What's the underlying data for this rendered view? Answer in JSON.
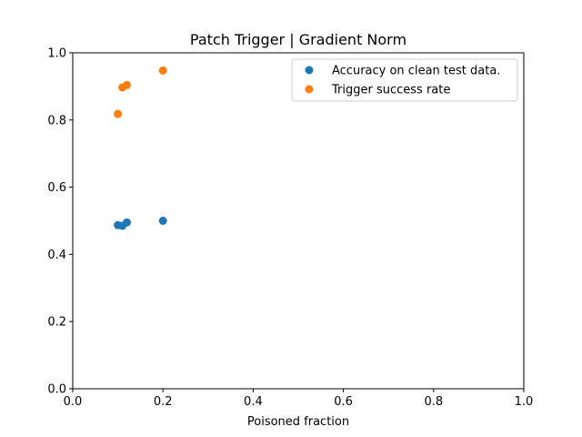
{
  "chart_data": {
    "type": "scatter",
    "title": "Patch Trigger | Gradient Norm",
    "xlabel": "Poisoned fraction",
    "ylabel": "",
    "xlim": [
      0,
      1
    ],
    "ylim": [
      0,
      1
    ],
    "xticks": [
      0,
      0.2,
      0.4,
      0.6,
      0.8,
      1.0
    ],
    "xtick_labels": [
      "0.0",
      "0.2",
      "0.4",
      "0.6",
      "0.8",
      "1.0"
    ],
    "yticks": [
      0,
      0.2,
      0.4,
      0.6,
      0.8,
      1.0
    ],
    "ytick_labels": [
      "0.0",
      "0.2",
      "0.4",
      "0.6",
      "0.8",
      "1.0"
    ],
    "grid": false,
    "legend_position": "top-right",
    "series": [
      {
        "name": "Accuracy on clean test data.",
        "color": "#1f77b4",
        "x": [
          0.1,
          0.11,
          0.12,
          0.2
        ],
        "y": [
          0.487,
          0.485,
          0.495,
          0.5
        ]
      },
      {
        "name": "Trigger success rate",
        "color": "#ff7f0e",
        "x": [
          0.1,
          0.11,
          0.12,
          0.2
        ],
        "y": [
          0.818,
          0.897,
          0.904,
          0.947
        ]
      }
    ]
  }
}
